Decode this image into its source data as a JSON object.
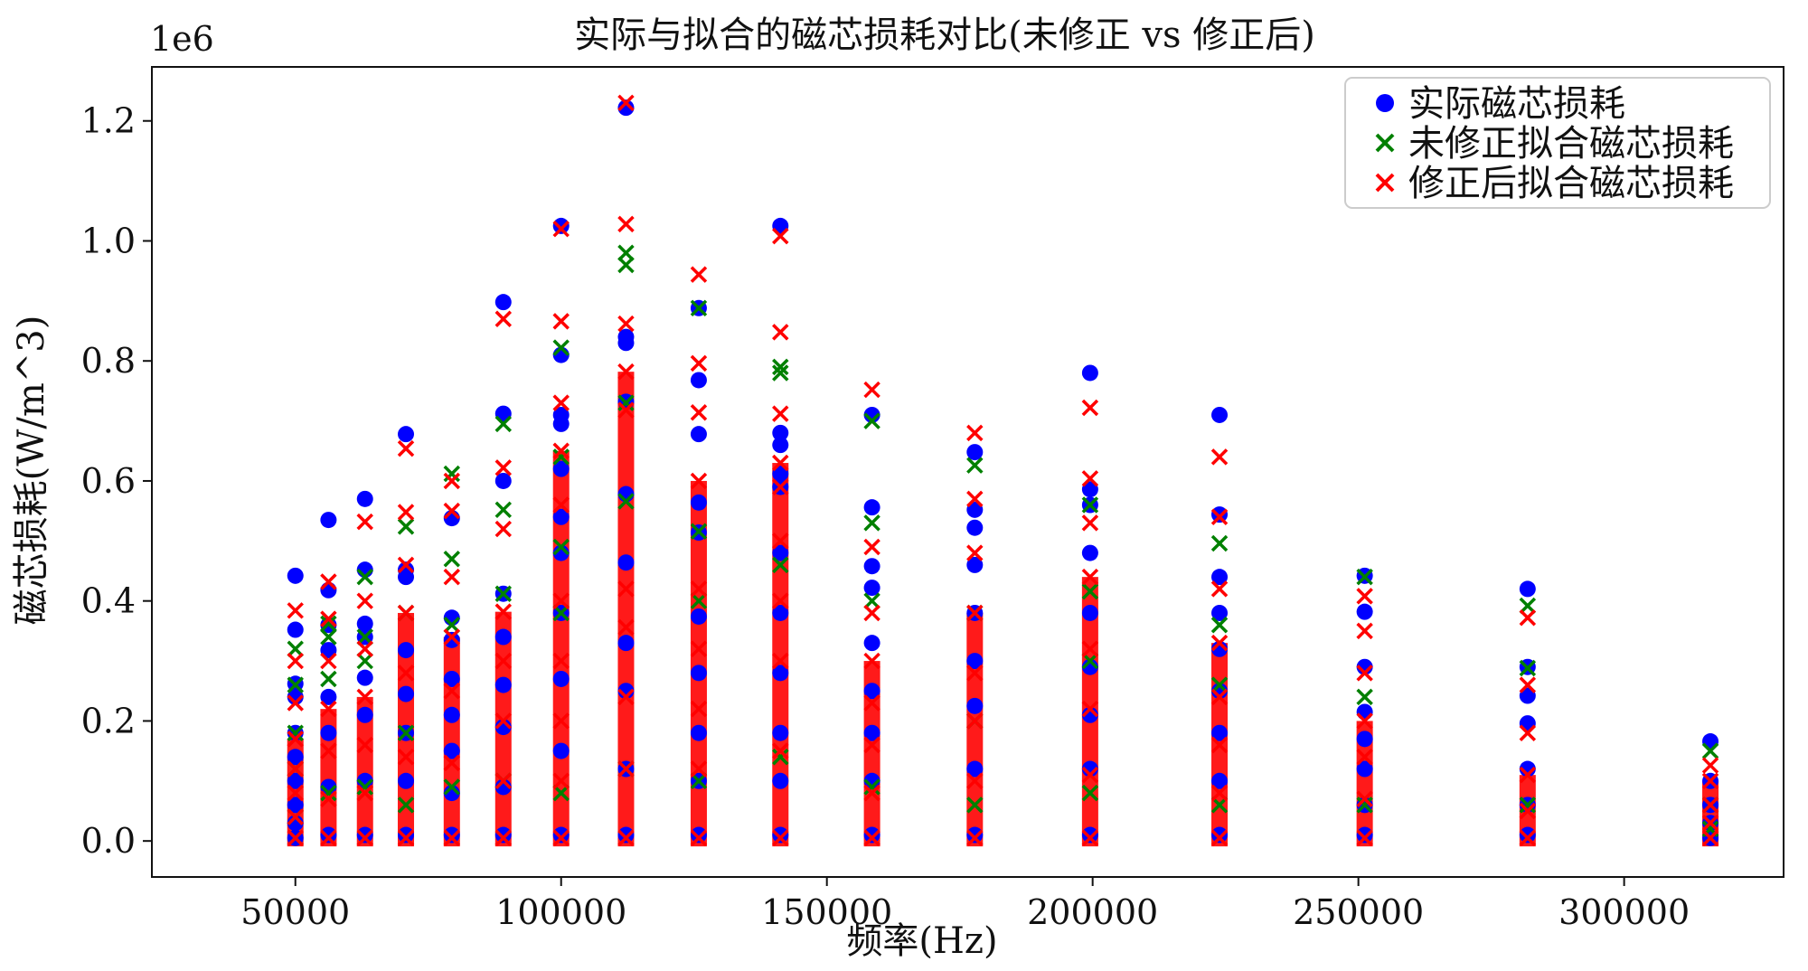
{
  "chart_data": {
    "type": "scatter",
    "title": "实际与拟合的磁芯损耗对比(未修正 vs 修正后)",
    "xlabel": "频率(Hz)",
    "ylabel": "磁芯损耗(W/m^3)",
    "y_offset_label": "1e6",
    "xlim": [
      23000,
      330000
    ],
    "ylim": [
      -60000,
      1290000
    ],
    "x_ticks": [
      50000,
      100000,
      150000,
      200000,
      250000,
      300000
    ],
    "x_tick_labels": [
      "50000",
      "100000",
      "150000",
      "200000",
      "250000",
      "300000"
    ],
    "y_ticks": [
      0,
      200000,
      400000,
      600000,
      800000,
      1000000,
      1200000
    ],
    "y_tick_labels": [
      "0.0",
      "0.2",
      "0.4",
      "0.6",
      "0.8",
      "1.0",
      "1.2"
    ],
    "grid": false,
    "legend_position": "top-right",
    "series": [
      {
        "name": "实际磁芯损耗",
        "marker": "circle",
        "color": "#0000ff",
        "x": [
          50000,
          50000,
          50000,
          50000,
          50000,
          50000,
          50000,
          50000,
          50000,
          50000,
          56234,
          56234,
          56234,
          56234,
          56234,
          56234,
          56234,
          56234,
          63096,
          63096,
          63096,
          63096,
          63096,
          63096,
          63096,
          63096,
          70795,
          70795,
          70795,
          70795,
          70795,
          70795,
          70795,
          70795,
          79433,
          79433,
          79433,
          79433,
          79433,
          79433,
          79433,
          79433,
          89125,
          89125,
          89125,
          89125,
          89125,
          89125,
          89125,
          89125,
          89125,
          100000,
          100000,
          100000,
          100000,
          100000,
          100000,
          100000,
          100000,
          100000,
          100000,
          100000,
          112202,
          112202,
          112202,
          112202,
          112202,
          112202,
          112202,
          112202,
          112202,
          112202,
          125893,
          125893,
          125893,
          125893,
          125893,
          125893,
          125893,
          125893,
          125893,
          125893,
          141254,
          141254,
          141254,
          141254,
          141254,
          141254,
          141254,
          141254,
          141254,
          141254,
          141254,
          158489,
          158489,
          158489,
          158489,
          158489,
          158489,
          158489,
          158489,
          158489,
          177828,
          177828,
          177828,
          177828,
          177828,
          177828,
          177828,
          177828,
          177828,
          199526,
          199526,
          199526,
          199526,
          199526,
          199526,
          199526,
          199526,
          199526,
          223872,
          223872,
          223872,
          223872,
          223872,
          223872,
          223872,
          223872,
          223872,
          251189,
          251189,
          251189,
          251189,
          251189,
          251189,
          251189,
          251189,
          281838,
          281838,
          281838,
          281838,
          281838,
          281838,
          281838,
          316228,
          316228,
          316228,
          316228,
          316228
        ],
        "y": [
          442000,
          352000,
          262000,
          240000,
          180000,
          140000,
          100000,
          60000,
          30000,
          5000,
          535000,
          418000,
          360000,
          318000,
          240000,
          180000,
          90000,
          10000,
          570000,
          452000,
          362000,
          340000,
          272000,
          210000,
          100000,
          10000,
          678000,
          452000,
          440000,
          318000,
          245000,
          180000,
          100000,
          10000,
          538000,
          372000,
          335000,
          270000,
          210000,
          150000,
          80000,
          10000,
          898000,
          712000,
          600000,
          412000,
          340000,
          260000,
          190000,
          90000,
          10000,
          1025000,
          810000,
          710000,
          695000,
          620000,
          540000,
          480000,
          380000,
          270000,
          150000,
          10000,
          1222000,
          840000,
          830000,
          732000,
          578000,
          464000,
          330000,
          250000,
          120000,
          10000,
          888000,
          768000,
          678000,
          564000,
          514000,
          374000,
          280000,
          180000,
          100000,
          10000,
          1025000,
          680000,
          660000,
          612000,
          590000,
          480000,
          380000,
          280000,
          180000,
          100000,
          10000,
          710000,
          556000,
          458000,
          422000,
          330000,
          250000,
          180000,
          100000,
          10000,
          648000,
          552000,
          522000,
          460000,
          380000,
          300000,
          225000,
          120000,
          10000,
          780000,
          586000,
          560000,
          480000,
          380000,
          290000,
          210000,
          120000,
          10000,
          710000,
          544000,
          440000,
          380000,
          320000,
          250000,
          180000,
          100000,
          10000,
          442000,
          382000,
          290000,
          215000,
          170000,
          120000,
          60000,
          10000,
          420000,
          290000,
          242000,
          196000,
          120000,
          60000,
          10000,
          166000,
          100000,
          60000,
          30000,
          5000
        ]
      },
      {
        "name": "未修正拟合磁芯损耗",
        "marker": "x",
        "color": "#008000",
        "x": [
          50000,
          50000,
          50000,
          50000,
          50000,
          56234,
          56234,
          56234,
          56234,
          63096,
          63096,
          63096,
          63096,
          70795,
          70795,
          70795,
          70795,
          79433,
          79433,
          79433,
          79433,
          89125,
          89125,
          89125,
          89125,
          100000,
          100000,
          100000,
          100000,
          100000,
          112202,
          112202,
          112202,
          112202,
          112202,
          125893,
          125893,
          125893,
          125893,
          141254,
          141254,
          141254,
          141254,
          158489,
          158489,
          158489,
          158489,
          177828,
          177828,
          177828,
          177828,
          199526,
          199526,
          199526,
          199526,
          223872,
          223872,
          223872,
          223872,
          251189,
          251189,
          251189,
          281838,
          281838,
          281838,
          316228,
          316228,
          316228
        ],
        "y": [
          320000,
          260000,
          180000,
          120000,
          40000,
          362000,
          340000,
          270000,
          80000,
          440000,
          340000,
          300000,
          90000,
          524000,
          380000,
          180000,
          60000,
          612000,
          470000,
          360000,
          90000,
          695000,
          552000,
          412000,
          100000,
          822000,
          640000,
          490000,
          380000,
          80000,
          980000,
          960000,
          730000,
          566000,
          120000,
          888000,
          516000,
          400000,
          100000,
          790000,
          780000,
          460000,
          140000,
          700000,
          530000,
          400000,
          90000,
          626000,
          380000,
          200000,
          60000,
          560000,
          416000,
          300000,
          80000,
          496000,
          360000,
          260000,
          60000,
          440000,
          240000,
          60000,
          392000,
          288000,
          60000,
          150000,
          60000,
          20000
        ]
      },
      {
        "name": "修正后拟合磁芯损耗",
        "marker": "x",
        "color": "#ff0000",
        "x": [
          50000,
          50000,
          50000,
          50000,
          50000,
          50000,
          50000,
          50000,
          56234,
          56234,
          56234,
          56234,
          56234,
          56234,
          56234,
          63096,
          63096,
          63096,
          63096,
          63096,
          63096,
          63096,
          70795,
          70795,
          70795,
          70795,
          70795,
          70795,
          70795,
          79433,
          79433,
          79433,
          79433,
          79433,
          79433,
          79433,
          89125,
          89125,
          89125,
          89125,
          89125,
          89125,
          89125,
          89125,
          100000,
          100000,
          100000,
          100000,
          100000,
          100000,
          100000,
          100000,
          100000,
          100000,
          112202,
          112202,
          112202,
          112202,
          112202,
          112202,
          112202,
          112202,
          112202,
          112202,
          125893,
          125893,
          125893,
          125893,
          125893,
          125893,
          125893,
          125893,
          125893,
          141254,
          141254,
          141254,
          141254,
          141254,
          141254,
          141254,
          141254,
          141254,
          141254,
          158489,
          158489,
          158489,
          158489,
          158489,
          158489,
          158489,
          158489,
          177828,
          177828,
          177828,
          177828,
          177828,
          177828,
          177828,
          177828,
          199526,
          199526,
          199526,
          199526,
          199526,
          199526,
          199526,
          199526,
          223872,
          223872,
          223872,
          223872,
          223872,
          223872,
          223872,
          223872,
          251189,
          251189,
          251189,
          251189,
          251189,
          251189,
          251189,
          281838,
          281838,
          281838,
          281838,
          281838,
          281838,
          316228,
          316228,
          316228,
          316228,
          316228
        ],
        "y": [
          384000,
          300000,
          230000,
          170000,
          120000,
          80000,
          40000,
          5000,
          432000,
          370000,
          300000,
          220000,
          150000,
          70000,
          5000,
          532000,
          400000,
          320000,
          240000,
          160000,
          80000,
          5000,
          654000,
          548000,
          460000,
          380000,
          280000,
          140000,
          5000,
          600000,
          550000,
          440000,
          340000,
          250000,
          130000,
          5000,
          870000,
          622000,
          520000,
          382000,
          300000,
          200000,
          100000,
          5000,
          1020000,
          866000,
          730000,
          650000,
          560000,
          400000,
          300000,
          200000,
          100000,
          5000,
          1230000,
          1028000,
          862000,
          782000,
          718000,
          420000,
          356000,
          240000,
          120000,
          5000,
          944000,
          796000,
          714000,
          600000,
          420000,
          320000,
          220000,
          120000,
          5000,
          1008000,
          848000,
          712000,
          630000,
          590000,
          500000,
          400000,
          300000,
          150000,
          5000,
          752000,
          490000,
          380000,
          300000,
          230000,
          160000,
          80000,
          5000,
          680000,
          570000,
          480000,
          380000,
          280000,
          200000,
          100000,
          5000,
          722000,
          604000,
          530000,
          440000,
          320000,
          220000,
          110000,
          5000,
          640000,
          540000,
          420000,
          330000,
          240000,
          160000,
          80000,
          5000,
          408000,
          350000,
          280000,
          200000,
          140000,
          70000,
          5000,
          372000,
          260000,
          180000,
          110000,
          50000,
          5000,
          126000,
          100000,
          60000,
          30000,
          5000
        ]
      }
    ]
  }
}
